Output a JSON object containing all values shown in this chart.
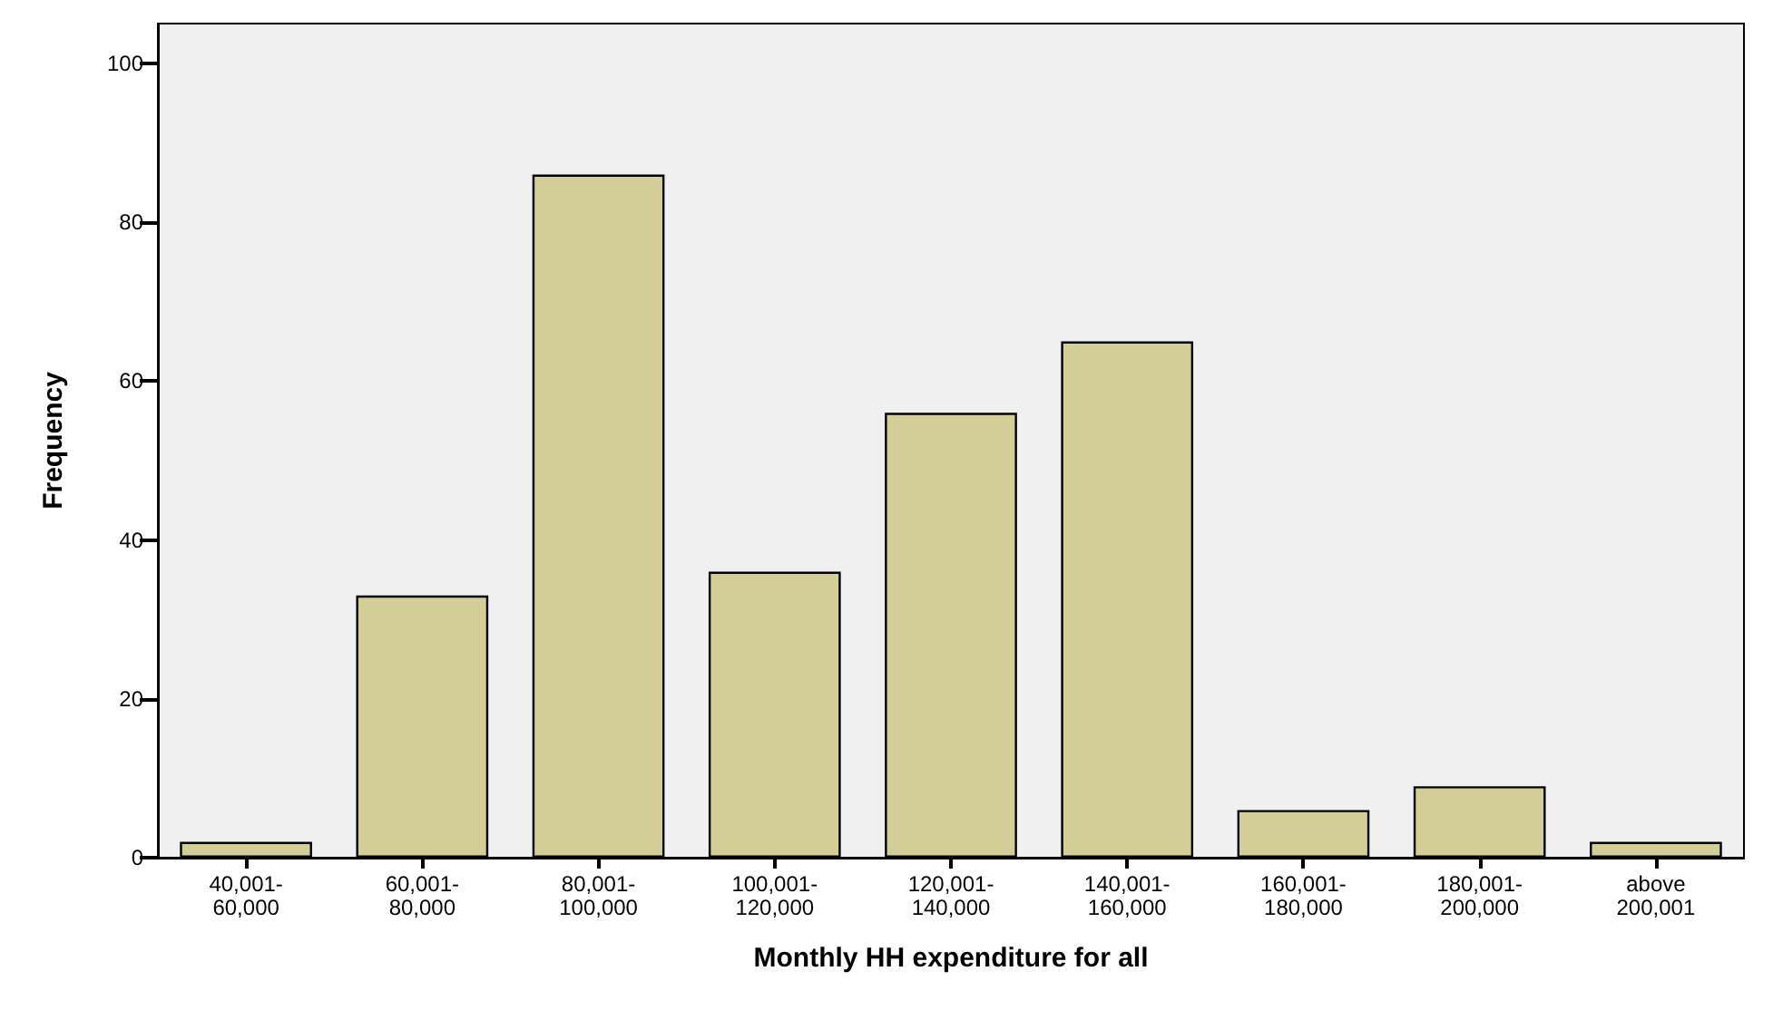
{
  "chart_data": {
    "type": "bar",
    "xlabel": "Monthly HH expenditure for all",
    "ylabel": "Frequency",
    "categories": [
      "40,001-\n60,000",
      "60,001-\n80,000",
      "80,001-\n100,000",
      "100,001-\n120,000",
      "120,001-\n140,000",
      "140,001-\n160,000",
      "160,001-\n180,000",
      "180,001-\n200,000",
      "above\n200,001"
    ],
    "values": [
      2,
      33,
      86,
      36,
      56,
      65,
      6,
      9,
      2
    ],
    "color": "#d3ce97",
    "ylim": [
      0,
      105
    ],
    "yticks": [
      0,
      20,
      40,
      60,
      80,
      100
    ],
    "grid": false
  }
}
